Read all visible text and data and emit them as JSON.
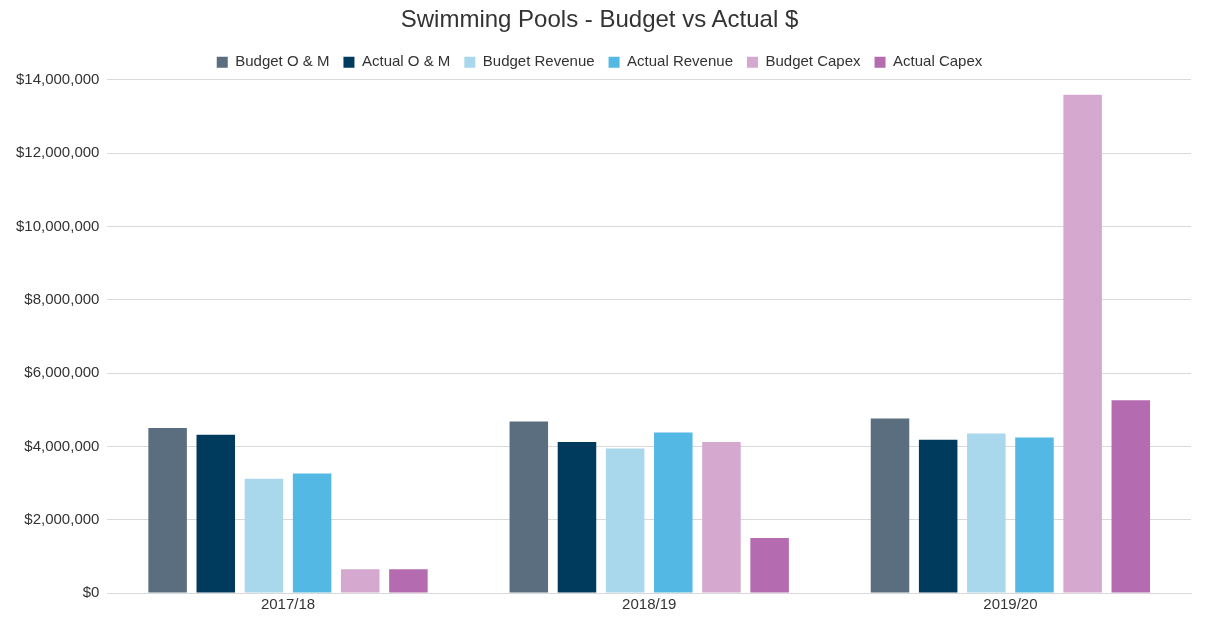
{
  "chart_data": {
    "type": "bar",
    "title": "Swimming Pools - Budget vs Actual $",
    "categories": [
      "2017/18",
      "2018/19",
      "2019/20"
    ],
    "series": [
      {
        "name": "Budget O & M",
        "color": "#5b6e80",
        "values": [
          4500000,
          4680000,
          4760000
        ]
      },
      {
        "name": "Actual O & M",
        "color": "#003a5d",
        "values": [
          4320000,
          4120000,
          4180000
        ]
      },
      {
        "name": "Budget Revenue",
        "color": "#a9d8ec",
        "values": [
          3120000,
          3940000,
          4350000
        ]
      },
      {
        "name": "Actual Revenue",
        "color": "#54b8e4",
        "values": [
          3260000,
          4380000,
          4240000
        ]
      },
      {
        "name": "Budget Capex",
        "color": "#d5a8cf",
        "values": [
          650000,
          4120000,
          13590000
        ]
      },
      {
        "name": "Actual Capex",
        "color": "#b56bb0",
        "values": [
          650000,
          1500000,
          5260000
        ]
      }
    ],
    "ylim": [
      0,
      14000000
    ],
    "yticks": [
      {
        "value": 0,
        "label": "$0"
      },
      {
        "value": 2000000,
        "label": "$2,000,000"
      },
      {
        "value": 4000000,
        "label": "$4,000,000"
      },
      {
        "value": 6000000,
        "label": "$6,000,000"
      },
      {
        "value": 8000000,
        "label": "$8,000,000"
      },
      {
        "value": 10000000,
        "label": "$10,000,000"
      },
      {
        "value": 12000000,
        "label": "$12,000,000"
      },
      {
        "value": 14000000,
        "label": "$14,000,000"
      }
    ],
    "grid": "y",
    "legend": "top"
  }
}
